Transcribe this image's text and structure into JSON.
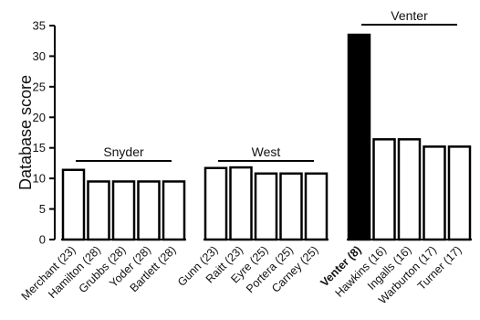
{
  "chart_data": {
    "type": "bar",
    "title": "",
    "xlabel": "",
    "ylabel": "Database score",
    "ylim": [
      0,
      35
    ],
    "yticks": [
      0,
      5,
      10,
      15,
      20,
      25,
      30,
      35
    ],
    "grid": false,
    "legend": "none",
    "colors": {
      "bar_fill": "#ffffff",
      "highlight_fill": "#000000",
      "stroke": "#000000"
    },
    "groups": [
      {
        "name": "Snyder",
        "categories": [
          "Merchant (23)",
          "Hamilton (28)",
          "Grubbs (28)",
          "Yoder (28)",
          "Bartlett (28)"
        ],
        "values": [
          11.4,
          9.5,
          9.5,
          9.5,
          9.5
        ],
        "highlight": []
      },
      {
        "name": "West",
        "categories": [
          "Gunn (23)",
          "Raitt (23)",
          "Eyre (25)",
          "Portera (25)",
          "Carney (25)"
        ],
        "values": [
          11.7,
          11.8,
          10.8,
          10.8,
          10.8
        ],
        "highlight": []
      },
      {
        "name": "Venter",
        "categories": [
          "Venter (8)",
          "Hawkins (16)",
          "Ingalls (16)",
          "Warburton (17)",
          "Turner (17)"
        ],
        "values": [
          33.5,
          16.4,
          16.4,
          15.2,
          15.2
        ],
        "highlight": [
          "Venter (8)"
        ]
      }
    ]
  }
}
